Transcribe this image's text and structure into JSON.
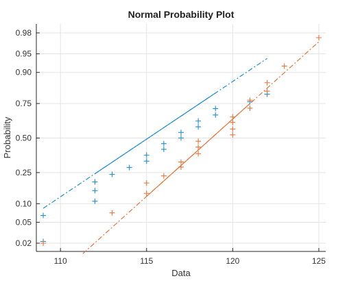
{
  "chart_data": {
    "type": "scatter",
    "title": "Normal Probability Plot",
    "xlabel": "Data",
    "ylabel": "Probability",
    "xlim": [
      108.6,
      125.4
    ],
    "x_ticks": [
      110,
      115,
      120,
      125
    ],
    "y_scale": "normal-probability",
    "y_ticks": [
      {
        "p": 0.02,
        "label": "0.02"
      },
      {
        "p": 0.05,
        "label": "0.05"
      },
      {
        "p": 0.1,
        "label": "0.10"
      },
      {
        "p": 0.25,
        "label": "0.25"
      },
      {
        "p": 0.5,
        "label": "0.50"
      },
      {
        "p": 0.75,
        "label": "0.75"
      },
      {
        "p": 0.9,
        "label": "0.90"
      },
      {
        "p": 0.95,
        "label": "0.95"
      },
      {
        "p": 0.98,
        "label": "0.98"
      }
    ],
    "grid": true,
    "series": [
      {
        "color": "#1f8fd1",
        "points": [
          {
            "x": 109,
            "p": 0.0217
          },
          {
            "x": 109,
            "p": 0.0652
          },
          {
            "x": 112,
            "p": 0.1087
          },
          {
            "x": 112,
            "p": 0.1522
          },
          {
            "x": 112,
            "p": 0.1957
          },
          {
            "x": 113,
            "p": 0.2391
          },
          {
            "x": 114,
            "p": 0.2826
          },
          {
            "x": 115,
            "p": 0.3261
          },
          {
            "x": 115,
            "p": 0.3696
          },
          {
            "x": 116,
            "p": 0.413
          },
          {
            "x": 116,
            "p": 0.4565
          },
          {
            "x": 117,
            "p": 0.5
          },
          {
            "x": 117,
            "p": 0.5435
          },
          {
            "x": 118,
            "p": 0.587
          },
          {
            "x": 118,
            "p": 0.6304
          },
          {
            "x": 119,
            "p": 0.6739
          },
          {
            "x": 119,
            "p": 0.7174
          },
          {
            "x": 121,
            "p": 0.7609
          },
          {
            "x": 122,
            "p": 0.8043
          }
        ],
        "fit_line": {
          "x": [
            109,
            122
          ],
          "p": [
            0.085,
            0.94
          ],
          "solid_x": [
            112,
            119
          ]
        }
      },
      {
        "color": "#e8743b",
        "points": [
          {
            "x": 109,
            "p": 0.02
          },
          {
            "x": 113,
            "p": 0.072
          },
          {
            "x": 115,
            "p": 0.14
          },
          {
            "x": 115,
            "p": 0.19
          },
          {
            "x": 116,
            "p": 0.23
          },
          {
            "x": 117,
            "p": 0.285
          },
          {
            "x": 117,
            "p": 0.32
          },
          {
            "x": 118,
            "p": 0.38
          },
          {
            "x": 118,
            "p": 0.43
          },
          {
            "x": 118,
            "p": 0.475
          },
          {
            "x": 120,
            "p": 0.525
          },
          {
            "x": 120,
            "p": 0.57
          },
          {
            "x": 120,
            "p": 0.62
          },
          {
            "x": 120,
            "p": 0.66
          },
          {
            "x": 121,
            "p": 0.72
          },
          {
            "x": 121,
            "p": 0.77
          },
          {
            "x": 122,
            "p": 0.82
          },
          {
            "x": 122,
            "p": 0.86
          },
          {
            "x": 123,
            "p": 0.92
          },
          {
            "x": 125,
            "p": 0.975
          }
        ],
        "fit_line": {
          "x": [
            111.3,
            125
          ],
          "p": [
            0.012,
            0.97
          ],
          "solid_x": [
            115,
            121
          ]
        }
      }
    ]
  }
}
